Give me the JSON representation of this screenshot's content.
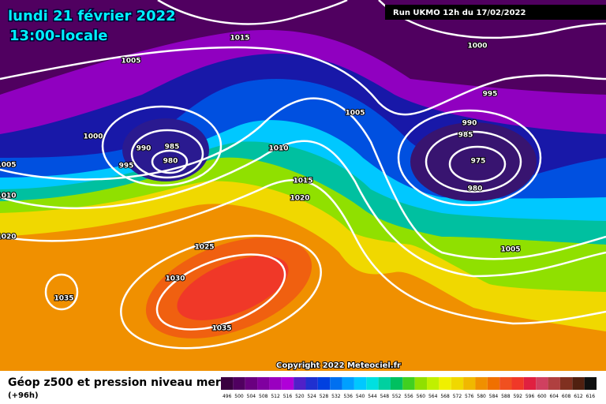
{
  "header": {
    "title": "lundi 21 février 2022",
    "subtitle": "13:00-locale",
    "run": "Run UKMO 12h du 17/02/2022"
  },
  "isobar_labels": [
    1015,
    1005,
    1000,
    995,
    1005,
    990,
    985,
    975,
    980,
    1000,
    990,
    985,
    980,
    995,
    1005,
    1010,
    1015,
    1020,
    1010,
    1020,
    1025,
    1030,
    1035,
    1035,
    1005
  ],
  "copyright": "Copyright 2022 Meteociel.fr",
  "legend": {
    "title": "Géop z500 et pression niveau mer",
    "lead_time": "(+96h)",
    "scale": [
      496,
      500,
      504,
      508,
      512,
      516,
      520,
      524,
      528,
      532,
      536,
      540,
      544,
      548,
      552,
      556,
      560,
      564,
      568,
      572,
      576,
      580,
      584,
      588,
      592,
      596,
      600,
      604,
      608,
      612,
      616
    ]
  }
}
